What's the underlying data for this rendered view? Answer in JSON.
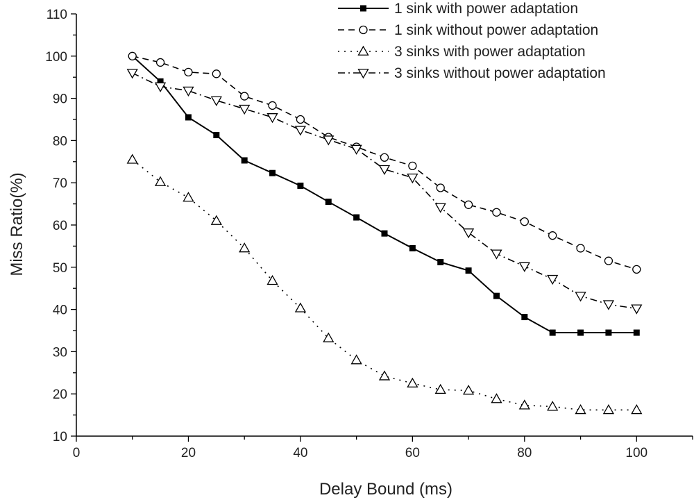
{
  "chart_data": {
    "type": "line",
    "title": "",
    "xlabel": "Delay Bound (ms)",
    "ylabel": "Miss Ratio(%)",
    "xlim": [
      0,
      110
    ],
    "ylim": [
      10,
      110
    ],
    "xticks": [
      0,
      20,
      40,
      60,
      80,
      100
    ],
    "yticks": [
      10,
      20,
      30,
      40,
      50,
      60,
      70,
      80,
      90,
      100,
      110
    ],
    "grid": false,
    "legend_position": "top-right",
    "x": [
      10,
      15,
      20,
      25,
      30,
      35,
      40,
      45,
      50,
      55,
      60,
      65,
      70,
      75,
      80,
      85,
      90,
      95,
      100
    ],
    "series": [
      {
        "name": "1 sink with power adaptation",
        "line": "solid",
        "marker": "filled-square",
        "values": [
          100,
          94,
          85.5,
          81.3,
          75.3,
          72.3,
          69.3,
          65.5,
          61.8,
          58,
          54.5,
          51.2,
          49.2,
          43.2,
          38.2,
          34.5,
          34.5,
          34.5,
          34.5
        ]
      },
      {
        "name": "1 sink without power adaptation",
        "line": "dashed",
        "marker": "open-circle",
        "values": [
          100,
          98.5,
          96.2,
          95.8,
          90.5,
          88.3,
          85,
          80.8,
          78.5,
          76,
          74,
          68.8,
          64.8,
          63,
          60.8,
          57.5,
          54.5,
          51.5,
          49.5
        ]
      },
      {
        "name": "3 sinks with power adaptation",
        "line": "dotted",
        "marker": "open-triangle-up",
        "values": [
          75.5,
          70.2,
          66.5,
          61,
          54.5,
          46.8,
          40.3,
          33.2,
          28,
          24.2,
          22.5,
          21,
          20.8,
          18.8,
          17.3,
          17,
          16.2,
          16.2,
          16.2
        ]
      },
      {
        "name": "3 sinks without power adaptation",
        "line": "dash-dot",
        "marker": "open-triangle-down",
        "values": [
          96,
          92.8,
          91.8,
          89.5,
          87.5,
          85.5,
          82.5,
          80.2,
          78,
          73.2,
          71.2,
          64.2,
          58.2,
          53.2,
          50.2,
          47.2,
          43.2,
          41.2,
          40.2
        ]
      }
    ]
  }
}
